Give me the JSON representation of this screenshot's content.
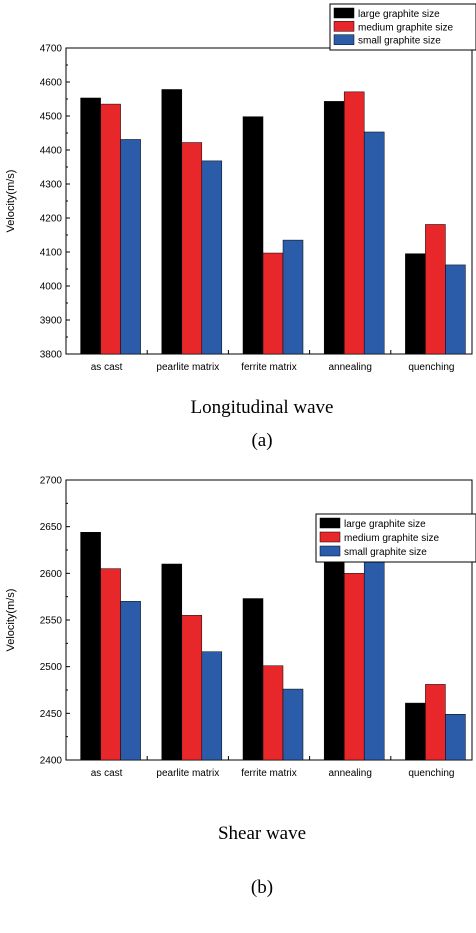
{
  "legend": [
    {
      "name": "large graphite size",
      "color": "#000000"
    },
    {
      "name": "medium graphite size",
      "color": "#e8272a"
    },
    {
      "name": "small graphite size",
      "color": "#2a5caa"
    }
  ],
  "chart_data": [
    {
      "type": "bar",
      "categories": [
        "as cast",
        "pearlite matrix",
        "ferrite matrix",
        "annealing",
        "quenching"
      ],
      "series": [
        {
          "name": "large graphite size",
          "values": [
            4553,
            4578,
            4498,
            4543,
            4095
          ]
        },
        {
          "name": "medium graphite size",
          "values": [
            4535,
            4422,
            4097,
            4571,
            4181
          ]
        },
        {
          "name": "small graphite size",
          "values": [
            4431,
            4368,
            4135,
            4453,
            4062
          ]
        }
      ],
      "ylabel": "Velocity(m/s)",
      "ylim": [
        3800,
        4700
      ],
      "yticks": [
        3800,
        3900,
        4000,
        4100,
        4200,
        4300,
        4400,
        4500,
        4600,
        4700
      ],
      "caption_title": "Longitudinal wave",
      "caption_label": "(a)",
      "legend_position": "top-right",
      "grid": false
    },
    {
      "type": "bar",
      "categories": [
        "as cast",
        "pearlite matrix",
        "ferrite matrix",
        "annealing",
        "quenching"
      ],
      "series": [
        {
          "name": "large graphite size",
          "values": [
            2644,
            2610,
            2573,
            2626,
            2461
          ]
        },
        {
          "name": "medium graphite size",
          "values": [
            2605,
            2555,
            2501,
            2600,
            2481
          ]
        },
        {
          "name": "small graphite size",
          "values": [
            2570,
            2516,
            2476,
            2648,
            2449
          ]
        }
      ],
      "ylabel": "Velocity(m/s)",
      "ylim": [
        2400,
        2700
      ],
      "yticks": [
        2400,
        2450,
        2500,
        2550,
        2600,
        2650,
        2700
      ],
      "caption_title": "Shear wave",
      "caption_label": "(b)",
      "legend_position": "top-right",
      "grid": false
    }
  ]
}
